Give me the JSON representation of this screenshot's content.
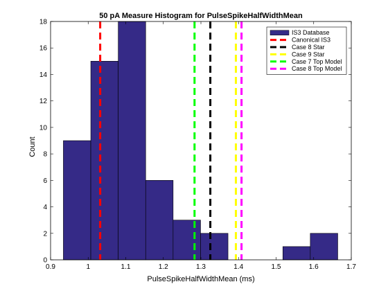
{
  "chart_data": {
    "type": "bar",
    "title": "50 pA Measure Histogram for PulseSpikeHalfWidthMean",
    "xlabel": "PulseSpikeHalfWidthMean (ms)",
    "ylabel": "Count",
    "xlim": [
      0.9,
      1.7
    ],
    "ylim": [
      0,
      18
    ],
    "xticks": [
      0.9,
      1.0,
      1.1,
      1.2,
      1.3,
      1.4,
      1.5,
      1.6,
      1.7
    ],
    "xtick_labels": [
      "0.9",
      "1",
      "1.1",
      "1.2",
      "1.3",
      "1.4",
      "1.5",
      "1.6",
      "1.7"
    ],
    "yticks": [
      0,
      2,
      4,
      6,
      8,
      10,
      12,
      14,
      16,
      18
    ],
    "ytick_labels": [
      "0",
      "2",
      "4",
      "6",
      "8",
      "10",
      "12",
      "14",
      "16",
      "18"
    ],
    "grid": false,
    "legend_position": "top-right",
    "bar_color": "#352a87",
    "histogram": {
      "name": "IS3 Database",
      "bin_edges": [
        0.934,
        1.007,
        1.08,
        1.153,
        1.226,
        1.299,
        1.372,
        1.445,
        1.518,
        1.591,
        1.664
      ],
      "counts": [
        9,
        15,
        18,
        6,
        3,
        2,
        0,
        0,
        1,
        2
      ]
    },
    "reference_lines": [
      {
        "name": "Canonical IS3",
        "x": 1.032,
        "color": "#ff0000"
      },
      {
        "name": "Case 8 Star",
        "x": 1.325,
        "color": "#000000"
      },
      {
        "name": "Case 9 Star",
        "x": 1.393,
        "color": "#ffff00"
      },
      {
        "name": "Case 7 Top Model",
        "x": 1.283,
        "color": "#00ff00"
      },
      {
        "name": "Case 8 Top Model",
        "x": 1.408,
        "color": "#ff00ff"
      }
    ]
  }
}
